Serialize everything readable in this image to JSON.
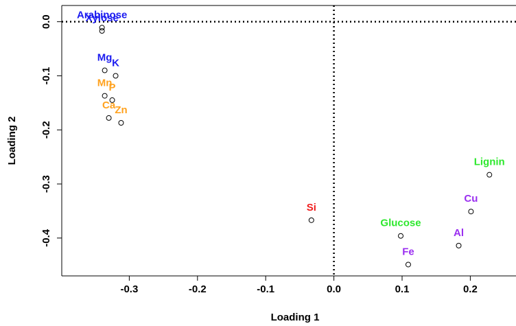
{
  "chart_data": {
    "type": "scatter",
    "x_label": "Loading 1",
    "y_label": "Loading 2",
    "labels": [
      "Arabinose",
      "Xylose",
      "Mg",
      "K",
      "Mn",
      "P",
      "Ca",
      "Zn",
      "Si",
      "Lignin",
      "Cu",
      "Glucose",
      "Al",
      "Fe"
    ],
    "x": [
      -0.34,
      -0.34,
      -0.336,
      -0.32,
      -0.336,
      -0.325,
      -0.33,
      -0.312,
      -0.033,
      0.228,
      0.201,
      0.098,
      0.183,
      0.109
    ],
    "y": [
      -0.011,
      -0.017,
      -0.09,
      -0.1,
      -0.137,
      -0.145,
      -0.178,
      -0.187,
      -0.367,
      -0.283,
      -0.351,
      -0.396,
      -0.414,
      -0.449
    ],
    "label_colors": [
      "#1c1cf0",
      "#1c1cf0",
      "#1c1cf0",
      "#1c1cf0",
      "#ffa21f",
      "#ffa21f",
      "#ffa21f",
      "#ffa21f",
      "#f01c1c",
      "#2ee82e",
      "#9a2ef0",
      "#2ee82e",
      "#9a2ef0",
      "#9a2ef0"
    ],
    "xlim": [
      -0.399,
      0.267
    ],
    "ylim": [
      -0.47,
      0.03
    ],
    "xticks": [
      -0.3,
      -0.2,
      -0.1,
      {
        "value": 0,
        "label": "0.0"
      },
      0.1,
      0.2
    ],
    "yticks": [
      {
        "value": 0,
        "label": "0.0"
      },
      -0.1,
      -0.2,
      -0.3,
      -0.4
    ],
    "reference_lines": {
      "x": 0,
      "y": 0
    }
  }
}
